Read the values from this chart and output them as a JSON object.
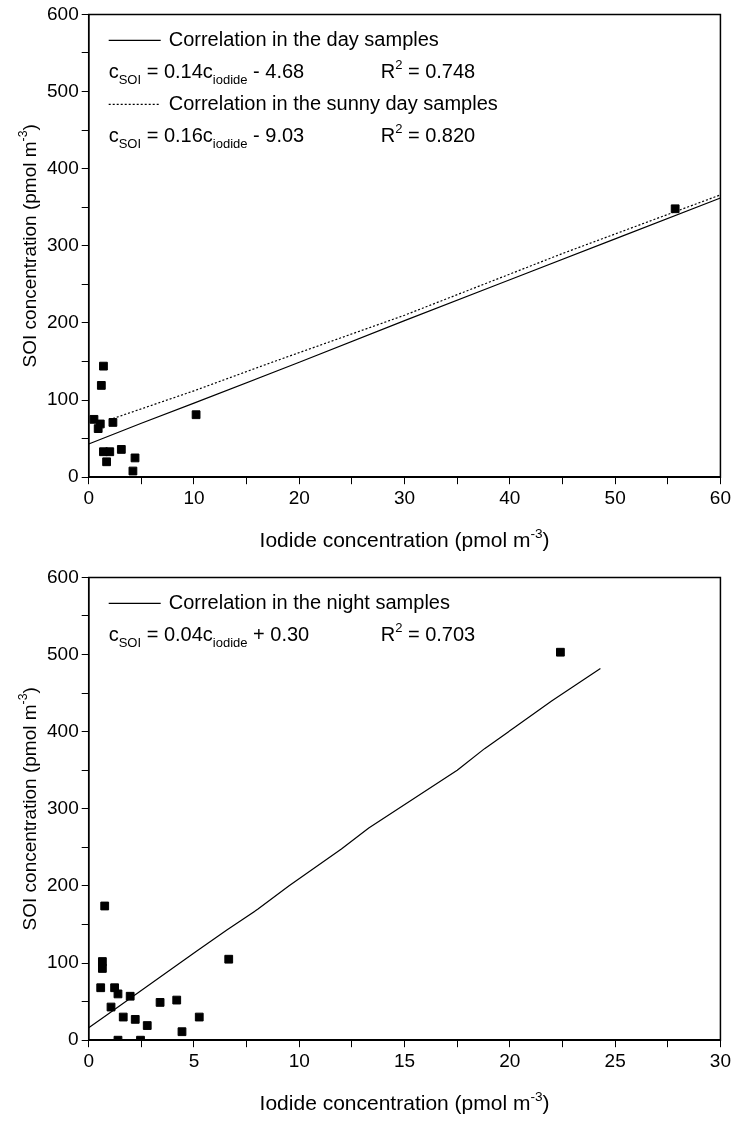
{
  "chart_data": [
    {
      "type": "scatter",
      "xlabel": "Iodide concentration (pmol m$^{-3}$)",
      "ylabel": "SOI concentration (pmol m$^{-3}$)",
      "xlim": [
        0,
        60
      ],
      "ylim": [
        0,
        600
      ],
      "xticks": [
        0,
        {
          "value": 5,
          "label": null
        },
        10,
        {
          "value": 15,
          "label": null
        },
        20,
        {
          "value": 25,
          "label": null
        },
        30,
        {
          "value": 35,
          "label": null
        },
        40,
        {
          "value": 45,
          "label": null
        },
        50,
        {
          "value": 55,
          "label": null
        },
        60
      ],
      "yticks": [
        0,
        {
          "value": 50,
          "label": null
        },
        100,
        {
          "value": 150,
          "label": null
        },
        200,
        {
          "value": 250,
          "label": null
        },
        300,
        {
          "value": 350,
          "label": null
        },
        400,
        {
          "value": 450,
          "label": null
        },
        500,
        {
          "value": 550,
          "label": null
        },
        600
      ],
      "grid": false,
      "legend": "top left",
      "annotations": [
        "c$_{SOI}$ = 0.14c$_{iodide}$ - 4.68",
        "R$^{2}$ = 0.748",
        "c$_{SOI}$ = 0.16c$_{iodide}$ - 9.03",
        "R$^{2}$ = 0.820"
      ],
      "series": [
        {
          "type": "scatter",
          "marker": "square",
          "color": "#000000",
          "x": [
            1.4,
            1.2,
            0.5,
            0.8,
            1.1,
            0.9,
            2.3,
            10.2,
            1.4,
            2.0,
            3.1,
            1.7,
            4.4,
            4.2,
            55.7
          ],
          "values": [
            144,
            119,
            75,
            null,
            69,
            63,
            71,
            81,
            33,
            33,
            36,
            20,
            25,
            8,
            348
          ]
        },
        {
          "type": "line",
          "name": "Correlation in the day samples",
          "marker": "none",
          "line_style": "solid",
          "color": "#000000",
          "x": [
            0,
            5,
            10,
            20,
            30,
            40,
            50,
            60
          ],
          "values": [
            43,
            70,
            96,
            149,
            203,
            256,
            309,
            362
          ]
        },
        {
          "type": "line",
          "name": "Correlation in the sunny day samples",
          "marker": "none",
          "line_style": "dotted",
          "color": "#000000",
          "x": [
            2.3,
            10,
            17,
            30,
            45,
            60
          ],
          "values": [
            76,
            112,
            147,
            210,
            290,
            366
          ]
        }
      ]
    },
    {
      "type": "scatter",
      "xlabel": "Iodide concentration (pmol m$^{-3}$)",
      "ylabel": "SOI concentration (pmol m$^{-3}$)",
      "xlim": [
        0,
        30
      ],
      "ylim": [
        0,
        600
      ],
      "xticks": [
        0,
        {
          "value": 2.5,
          "label": null
        },
        5,
        {
          "value": 7.5,
          "label": null
        },
        10,
        {
          "value": 12.5,
          "label": null
        },
        15,
        {
          "value": 17.5,
          "label": null
        },
        20,
        {
          "value": 22.5,
          "label": null
        },
        25,
        {
          "value": 27.5,
          "label": null
        },
        30
      ],
      "yticks": [
        0,
        {
          "value": 50,
          "label": null
        },
        100,
        {
          "value": 150,
          "label": null
        },
        200,
        {
          "value": 250,
          "label": null
        },
        300,
        {
          "value": 350,
          "label": null
        },
        400,
        {
          "value": 450,
          "label": null
        },
        500,
        {
          "value": 550,
          "label": null
        },
        600
      ],
      "grid": false,
      "legend": "top left",
      "annotations": [
        "c$_{SOI}$ = 0.04c$_{iodide}$ + 0.30",
        "R$^{2}$ = 0.703"
      ],
      "series": [
        {
          "type": "scatter",
          "marker": "square",
          "color": "#000000",
          "x": [
            0.76,
            0.65,
            0.65,
            0.57,
            1.23,
            1.39,
            1.97,
            1.06,
            1.64,
            2.21,
            2.78,
            4.43,
            3.39,
            4.18,
            5.25,
            6.65,
            1.39,
            2.46,
            22.4
          ],
          "values": [
            174,
            102,
            93,
            68,
            68,
            60,
            57,
            43,
            30,
            27,
            19,
            11,
            49,
            52,
            30,
            105,
            0,
            0,
            503
          ]
        },
        {
          "type": "line",
          "name": "Correlation in the night samples",
          "marker": "none",
          "line_style": "solid",
          "color": "#000000",
          "x": [
            0,
            5.1,
            6.56,
            8.04,
            9.5,
            12,
            13.3,
            17.5,
            18.8,
            20.2,
            22,
            24.3
          ],
          "values": [
            16,
            115,
            143,
            170,
            200,
            248,
            275,
            350,
            378,
            405,
            440,
            482
          ]
        }
      ]
    }
  ]
}
